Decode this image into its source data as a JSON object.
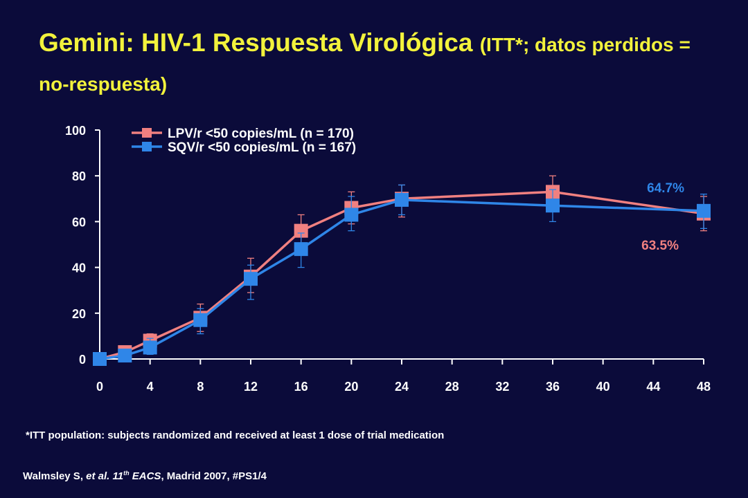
{
  "slide": {
    "title_main": "Gemini: HIV-1 Respuesta Virológica ",
    "title_sub": "(ITT*; datos perdidos = no-respuesta)",
    "footnote": "*ITT population: subjects randomized and received at least 1 dose of trial medication",
    "citation": {
      "author": "Walmsley S, ",
      "etal": "et al.",
      "conf_num": " 11",
      "conf_sup": "th",
      "conf_name": " EACS",
      "rest": ", Madrid 2007, #PS1/4"
    }
  },
  "colors": {
    "background": "#0b0b3a",
    "title": "#f2f23c",
    "lpv": "#f08080",
    "sqv": "#2f86e8",
    "axis": "#ffffff"
  },
  "chart_data": {
    "type": "line",
    "xlabel": "",
    "ylabel": "",
    "xlim": [
      0,
      48
    ],
    "ylim": [
      0,
      100
    ],
    "x_ticks": [
      0,
      4,
      8,
      12,
      16,
      20,
      24,
      28,
      32,
      36,
      40,
      44,
      48
    ],
    "y_ticks": [
      0,
      20,
      40,
      60,
      80,
      100
    ],
    "grid": false,
    "legend_position": "top-left",
    "series": [
      {
        "name": "LPV/r <50 copies/mL (n = 170)",
        "color": "#f08080",
        "x": [
          0,
          2,
          4,
          8,
          12,
          16,
          20,
          24,
          36,
          48
        ],
        "y": [
          0,
          3,
          8,
          18,
          36,
          56,
          66,
          70,
          73,
          63.5
        ],
        "err_low": [
          0,
          0,
          5,
          12,
          29,
          49,
          59,
          62,
          66,
          56
        ],
        "err_high": [
          0,
          5,
          11,
          24,
          44,
          63,
          73,
          76,
          80,
          71
        ],
        "end_label": "63.5%"
      },
      {
        "name": "SQV/r <50 copies/mL (n = 167)",
        "color": "#2f86e8",
        "x": [
          0,
          2,
          4,
          8,
          12,
          16,
          20,
          24,
          36,
          48
        ],
        "y": [
          0,
          1.5,
          5,
          17,
          35,
          48,
          63,
          69.5,
          67,
          64.7
        ],
        "err_low": [
          0,
          0,
          2,
          11,
          26,
          40,
          56,
          63,
          60,
          57
        ],
        "err_high": [
          0,
          3,
          9,
          22,
          41,
          55,
          71,
          76,
          74,
          72
        ],
        "end_label": "64.7%"
      }
    ]
  }
}
